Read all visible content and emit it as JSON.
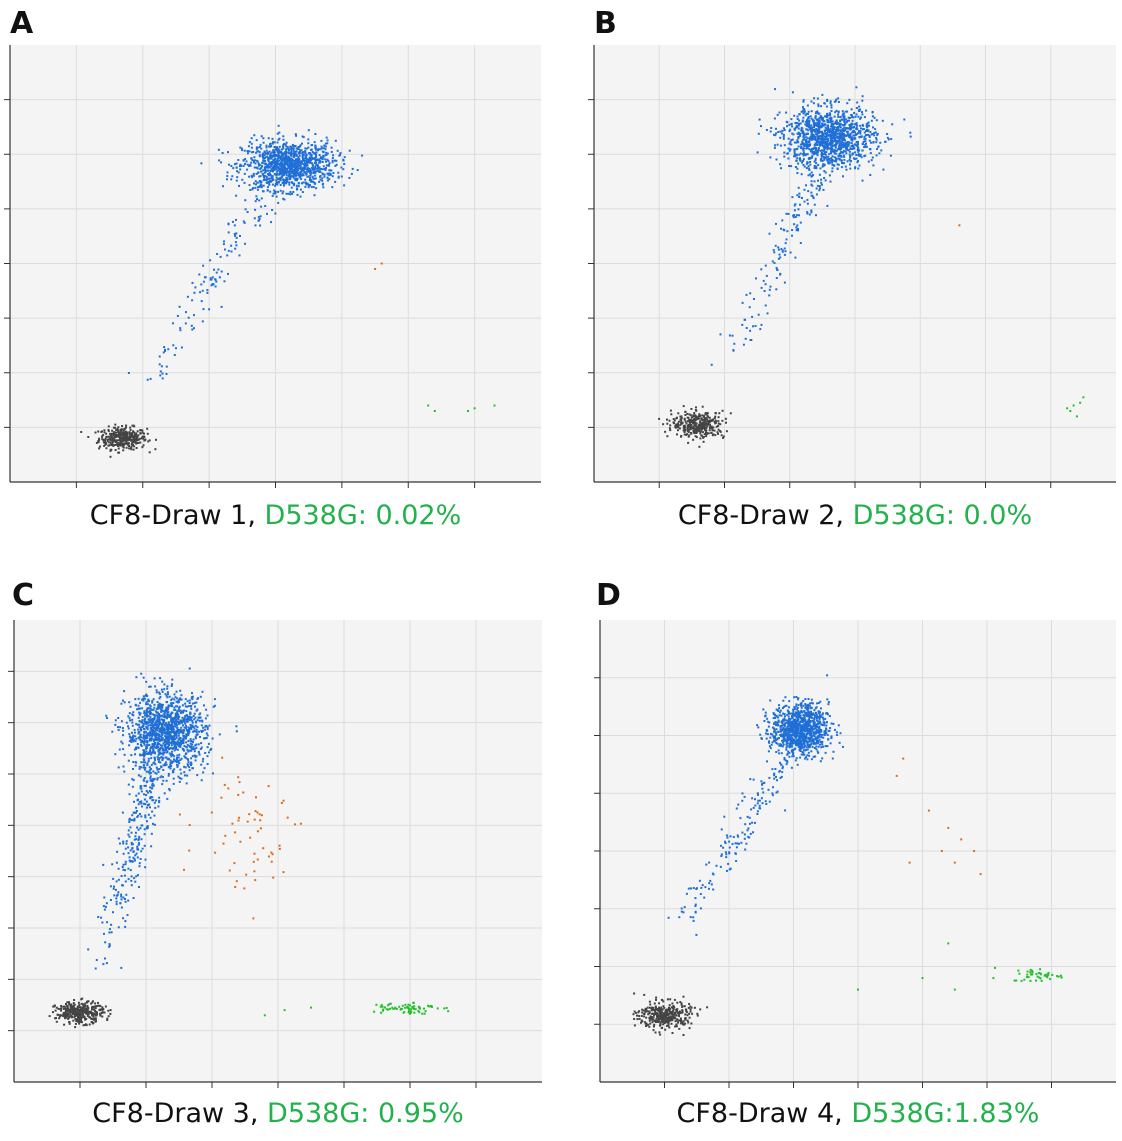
{
  "colors": {
    "plot_bg": "#f4f4f4",
    "grid": "#dcdcdc",
    "frame": "#333333",
    "negative": "#444444",
    "wildtype": "#1f6fd6",
    "mutant": "#22c02a",
    "double": "#e06b1a",
    "highlight_text": "#22b14c"
  },
  "panels": [
    {
      "letter": "A",
      "caption_sample": "CF8-Draw 1,",
      "caption_value": "D538G: 0.02%"
    },
    {
      "letter": "B",
      "caption_sample": "CF8-Draw 2,",
      "caption_value": "D538G: 0.0%"
    },
    {
      "letter": "C",
      "caption_sample": "CF8-Draw 3,",
      "caption_value": "D538G: 0.95%"
    },
    {
      "letter": "D",
      "caption_sample": "CF8-Draw 4,",
      "caption_value": "D538G:1.83%"
    }
  ],
  "chart_data": [
    {
      "type": "scatter",
      "xlim": [
        0,
        8
      ],
      "ylim": [
        0,
        8
      ],
      "grid": true,
      "series": [
        {
          "color": "negative",
          "cx": 1.7,
          "cy": 0.8,
          "sx": 0.18,
          "sy": 0.1,
          "n": 350
        },
        {
          "color": "wildtype",
          "cx": 4.2,
          "cy": 5.8,
          "sx": 0.35,
          "sy": 0.22,
          "n": 1100
        },
        {
          "color": "wildtype",
          "trail_from": [
            2.0,
            1.6
          ],
          "trail_to": [
            4.0,
            5.6
          ],
          "n": 150
        },
        {
          "color": "double",
          "points": [
            [
              5.5,
              3.9
            ],
            [
              5.6,
              4.0
            ]
          ]
        },
        {
          "color": "mutant",
          "points": [
            [
              6.3,
              1.4
            ],
            [
              6.4,
              1.3
            ],
            [
              6.9,
              1.3
            ],
            [
              7.0,
              1.35
            ],
            [
              7.3,
              1.4
            ]
          ]
        }
      ]
    },
    {
      "type": "scatter",
      "xlim": [
        0,
        8
      ],
      "ylim": [
        0,
        8
      ],
      "grid": true,
      "series": [
        {
          "color": "negative",
          "cx": 1.6,
          "cy": 1.05,
          "sx": 0.2,
          "sy": 0.12,
          "n": 350
        },
        {
          "color": "wildtype",
          "cx": 3.6,
          "cy": 6.3,
          "sx": 0.35,
          "sy": 0.28,
          "n": 1200
        },
        {
          "color": "wildtype",
          "trail_from": [
            2.1,
            2.1
          ],
          "trail_to": [
            3.4,
            5.7
          ],
          "n": 150
        },
        {
          "color": "double",
          "points": [
            [
              5.6,
              4.7
            ]
          ]
        },
        {
          "color": "mutant",
          "points": [
            [
              7.25,
              1.35
            ],
            [
              7.3,
              1.3
            ],
            [
              7.35,
              1.4
            ],
            [
              7.4,
              1.2
            ],
            [
              7.45,
              1.45
            ],
            [
              7.5,
              1.55
            ]
          ]
        }
      ]
    },
    {
      "type": "scatter",
      "xlim": [
        0,
        8
      ],
      "ylim": [
        0,
        9
      ],
      "grid": true,
      "series": [
        {
          "color": "negative",
          "cx": 1.0,
          "cy": 1.35,
          "sx": 0.18,
          "sy": 0.1,
          "n": 350
        },
        {
          "color": "wildtype",
          "cx": 2.3,
          "cy": 6.8,
          "sx": 0.3,
          "sy": 0.38,
          "n": 1300
        },
        {
          "color": "wildtype",
          "trail_from": [
            1.3,
            2.2
          ],
          "trail_to": [
            2.1,
            6.0
          ],
          "n": 260
        },
        {
          "color": "double",
          "cx": 3.6,
          "cy": 4.9,
          "sx": 0.4,
          "sy": 0.6,
          "n": 60
        },
        {
          "color": "mutant",
          "cx": 5.9,
          "cy": 1.45,
          "sx": 0.25,
          "sy": 0.06,
          "n": 70
        },
        {
          "color": "mutant",
          "points": [
            [
              3.8,
              1.3
            ],
            [
              4.1,
              1.4
            ],
            [
              4.5,
              1.45
            ]
          ]
        }
      ]
    },
    {
      "type": "scatter",
      "xlim": [
        0,
        8
      ],
      "ylim": [
        0,
        8
      ],
      "grid": true,
      "series": [
        {
          "color": "negative",
          "cx": 1.0,
          "cy": 1.15,
          "sx": 0.2,
          "sy": 0.12,
          "n": 350
        },
        {
          "color": "wildtype",
          "cx": 3.1,
          "cy": 6.1,
          "sx": 0.22,
          "sy": 0.22,
          "n": 1000
        },
        {
          "color": "wildtype",
          "trail_from": [
            1.1,
            2.5
          ],
          "trail_to": [
            2.9,
            5.6
          ],
          "n": 160
        },
        {
          "color": "double",
          "points": [
            [
              4.7,
              5.6
            ],
            [
              4.6,
              5.3
            ],
            [
              5.1,
              4.7
            ],
            [
              5.4,
              4.4
            ],
            [
              5.6,
              4.2
            ],
            [
              5.8,
              4.0
            ],
            [
              5.5,
              3.8
            ],
            [
              5.9,
              3.6
            ],
            [
              4.8,
              3.8
            ],
            [
              5.3,
              4.0
            ]
          ]
        },
        {
          "color": "mutant",
          "cx": 6.8,
          "cy": 1.85,
          "sx": 0.2,
          "sy": 0.06,
          "n": 45
        },
        {
          "color": "mutant",
          "points": [
            [
              4.0,
              1.6
            ],
            [
              5.0,
              1.8
            ],
            [
              5.4,
              2.4
            ],
            [
              5.5,
              1.6
            ],
            [
              6.1,
              1.8
            ]
          ]
        }
      ]
    }
  ]
}
